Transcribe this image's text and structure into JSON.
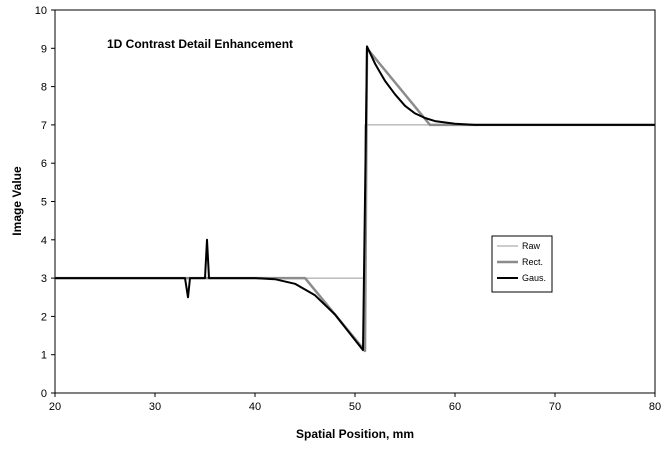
{
  "chart_data": {
    "type": "line",
    "title": "1D Contrast Detail Enhancement",
    "xlabel": "Spatial Position, mm",
    "ylabel": "Image Value",
    "xlim": [
      20,
      80
    ],
    "ylim": [
      0,
      10
    ],
    "xticks": [
      20,
      30,
      40,
      50,
      60,
      70,
      80
    ],
    "yticks": [
      0,
      1,
      2,
      3,
      4,
      5,
      6,
      7,
      8,
      9,
      10
    ],
    "grid": false,
    "legend_position": "right",
    "series": [
      {
        "name": "Raw",
        "color": "#9a9a9a",
        "points": [
          [
            20,
            3
          ],
          [
            51,
            3
          ],
          [
            51,
            7
          ],
          [
            80,
            7
          ]
        ]
      },
      {
        "name": "Rect.",
        "color": "#8c8c8c",
        "points": [
          [
            20,
            3
          ],
          [
            45,
            3
          ],
          [
            51,
            1.1
          ],
          [
            51.2,
            9
          ],
          [
            57.5,
            7
          ],
          [
            80,
            7
          ]
        ]
      },
      {
        "name": "Gaus.",
        "color": "#000000",
        "points": [
          [
            20,
            3
          ],
          [
            33,
            3
          ],
          [
            33.3,
            2.5
          ],
          [
            33.5,
            3
          ],
          [
            35,
            3
          ],
          [
            35.2,
            4
          ],
          [
            35.4,
            3
          ],
          [
            40,
            3
          ],
          [
            42,
            2.97
          ],
          [
            44,
            2.85
          ],
          [
            46,
            2.55
          ],
          [
            48,
            2.05
          ],
          [
            49.5,
            1.55
          ],
          [
            50.8,
            1.12
          ],
          [
            51.2,
            9.05
          ],
          [
            52,
            8.6
          ],
          [
            53,
            8.15
          ],
          [
            54,
            7.8
          ],
          [
            55,
            7.5
          ],
          [
            56,
            7.3
          ],
          [
            57,
            7.18
          ],
          [
            58,
            7.1
          ],
          [
            60,
            7.03
          ],
          [
            62,
            7
          ],
          [
            80,
            7
          ]
        ]
      }
    ]
  }
}
